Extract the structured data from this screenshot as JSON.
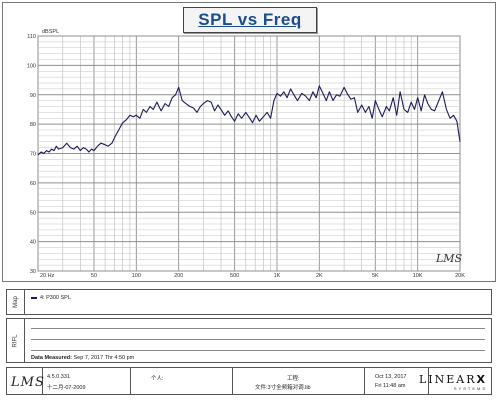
{
  "chart_data": {
    "type": "line",
    "title": "SPL vs Freq",
    "ylabel": "dBSPL",
    "xlabel": "",
    "x_scale": "log",
    "xlim": [
      20,
      20000
    ],
    "ylim": [
      30,
      110
    ],
    "grid": true,
    "y_ticks": [
      {
        "value": 30,
        "label": "30"
      },
      {
        "value": 40,
        "label": "40"
      },
      {
        "value": 50,
        "label": "50"
      },
      {
        "value": 60,
        "label": "60"
      },
      {
        "value": 70,
        "label": "70"
      },
      {
        "value": 80,
        "label": "80"
      },
      {
        "value": 90,
        "label": "90"
      },
      {
        "value": 100,
        "label": "100"
      },
      {
        "value": 110,
        "label": "110"
      }
    ],
    "x_ticks": [
      {
        "value": 20,
        "label": "20 Hz"
      },
      {
        "value": 50,
        "label": "50"
      },
      {
        "value": 100,
        "label": "100"
      },
      {
        "value": 200,
        "label": "200"
      },
      {
        "value": 500,
        "label": "500"
      },
      {
        "value": 1000,
        "label": "1K"
      },
      {
        "value": 2000,
        "label": "2K"
      },
      {
        "value": 5000,
        "label": "5K"
      },
      {
        "value": 10000,
        "label": "10K"
      },
      {
        "value": 20000,
        "label": "20K"
      }
    ],
    "series": [
      {
        "name": "P300 SPL",
        "color": "#1c1c5a",
        "x": [
          20,
          21,
          22,
          23,
          24,
          25,
          26,
          27,
          28,
          30,
          32,
          34,
          36,
          38,
          40,
          42,
          44,
          46,
          48,
          50,
          53,
          56,
          60,
          63,
          67,
          71,
          75,
          80,
          85,
          90,
          95,
          100,
          106,
          112,
          118,
          125,
          132,
          140,
          150,
          160,
          170,
          180,
          190,
          200,
          212,
          225,
          240,
          255,
          270,
          285,
          300,
          320,
          340,
          360,
          380,
          400,
          425,
          450,
          475,
          500,
          530,
          560,
          600,
          630,
          670,
          710,
          750,
          800,
          850,
          900,
          950,
          1000,
          1060,
          1120,
          1180,
          1250,
          1320,
          1400,
          1500,
          1600,
          1700,
          1800,
          1900,
          2000,
          2120,
          2240,
          2360,
          2500,
          2650,
          2800,
          3000,
          3150,
          3350,
          3550,
          3750,
          4000,
          4250,
          4500,
          4750,
          5000,
          5300,
          5600,
          6000,
          6300,
          6700,
          7100,
          7500,
          8000,
          8500,
          9000,
          9500,
          10000,
          10600,
          11200,
          11800,
          12500,
          13200,
          14000,
          15000,
          16000,
          17000,
          18000,
          19000,
          20000
        ],
        "y": [
          69.5,
          70.5,
          70,
          71,
          70.5,
          71.5,
          71,
          72.5,
          71.5,
          72,
          73.5,
          72,
          71.5,
          72.5,
          71,
          72,
          71.5,
          70.5,
          71.5,
          71,
          72.5,
          73.5,
          73,
          72.5,
          73.5,
          76,
          78,
          80.5,
          81.5,
          83,
          82.5,
          83,
          82,
          85,
          84,
          86,
          85,
          87.5,
          84.5,
          87,
          86,
          89,
          90,
          92.5,
          88,
          87,
          86,
          85.5,
          84,
          86,
          87,
          88,
          87.5,
          84.5,
          86.5,
          85,
          83,
          84.5,
          82.5,
          81,
          83.5,
          82,
          84,
          82.5,
          80.5,
          83,
          81,
          82.5,
          84,
          82,
          88,
          90.5,
          89.5,
          91,
          89,
          92,
          90,
          88,
          90.5,
          89.5,
          88,
          91,
          89,
          93,
          90.5,
          88,
          91,
          88,
          90,
          89.5,
          92.5,
          90.5,
          88.5,
          89,
          84,
          86.5,
          84,
          86,
          82,
          88,
          85,
          82.5,
          86,
          84.5,
          89,
          83,
          91,
          85,
          84,
          87.5,
          85,
          89,
          84.5,
          90,
          87,
          85,
          84.5,
          87.5,
          91,
          85,
          82,
          83,
          81,
          74
        ]
      }
    ]
  },
  "legend": {
    "entry": "4: P300 SPL"
  },
  "panels": {
    "map_label": "Map",
    "rifl_label": "RIFL"
  },
  "measured": {
    "label": "Data Measured:",
    "value": "Sep 7, 2017  Thr  4:50 pm"
  },
  "watermark": "LMS",
  "footer": {
    "logo": "LMS",
    "version": "4.5.0.331",
    "date_cn": "十二月-07-2009",
    "person_label": "个人:",
    "project_label": "工程:",
    "file_label": "文件:3寸全频箱对调.lib",
    "date": "Oct 13, 2017",
    "time": "Fri 11:48 am",
    "brand": "LINEAR",
    "brand_mark": "X",
    "brand_sub": "SYSTEMS"
  }
}
